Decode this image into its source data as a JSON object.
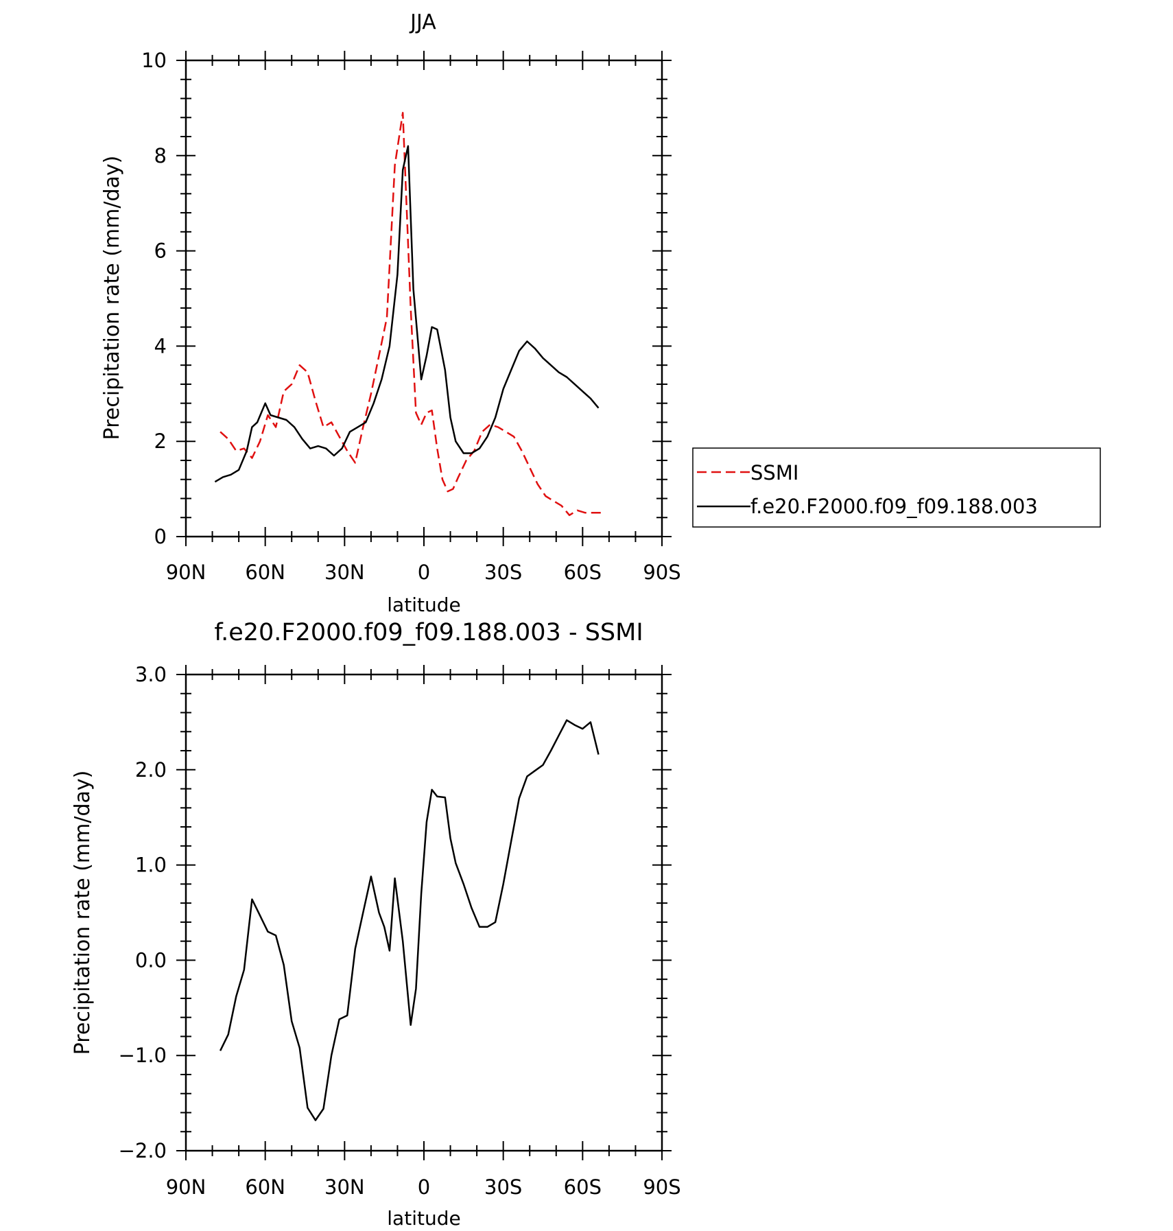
{
  "chart_data": [
    {
      "type": "line",
      "title": "JJA",
      "xlabel": "latitude",
      "ylabel": "Precipitation rate (mm/day)",
      "xlim": [
        90,
        -90
      ],
      "ylim": [
        0,
        10
      ],
      "grid": false,
      "legend_position": "right of plot, outside frame",
      "x_ticks": [
        {
          "value": 90,
          "label": "90N"
        },
        {
          "value": 60,
          "label": "60N"
        },
        {
          "value": 30,
          "label": "30N"
        },
        {
          "value": 0,
          "label": "0"
        },
        {
          "value": -30,
          "label": "30S"
        },
        {
          "value": -60,
          "label": "60S"
        },
        {
          "value": -90,
          "label": "90S"
        }
      ],
      "y_ticks": [
        {
          "value": 0,
          "label": "0"
        },
        {
          "value": 2,
          "label": "2"
        },
        {
          "value": 4,
          "label": "4"
        },
        {
          "value": 6,
          "label": "6"
        },
        {
          "value": 8,
          "label": "8"
        },
        {
          "value": 10,
          "label": "10"
        }
      ],
      "series": [
        {
          "name": "SSMI",
          "color": "#e01010",
          "dash": true,
          "x": [
            77,
            74,
            71,
            68,
            65,
            62,
            59,
            56,
            53,
            50,
            47,
            44,
            41,
            38,
            35,
            32,
            29,
            26,
            23,
            20,
            17,
            14,
            11,
            8,
            5,
            3,
            1,
            -1,
            -3,
            -5,
            -7,
            -9,
            -11,
            -13,
            -16,
            -19,
            -22,
            -25,
            -28,
            -31,
            -34,
            -37,
            -40,
            -43,
            -46,
            -49,
            -52,
            -55,
            -58,
            -61,
            -64,
            -67
          ],
          "y": [
            2.2,
            2.05,
            1.8,
            1.85,
            1.65,
            2.0,
            2.55,
            2.3,
            3.05,
            3.2,
            3.6,
            3.45,
            2.85,
            2.3,
            2.4,
            2.1,
            1.8,
            1.55,
            2.3,
            3.0,
            3.8,
            4.6,
            7.8,
            8.9,
            4.8,
            2.6,
            2.35,
            2.6,
            2.65,
            1.85,
            1.2,
            0.95,
            1.0,
            1.25,
            1.6,
            1.8,
            2.2,
            2.35,
            2.3,
            2.2,
            2.1,
            1.8,
            1.45,
            1.1,
            0.85,
            0.75,
            0.65,
            0.45,
            0.55,
            0.5,
            0.5,
            0.5
          ]
        },
        {
          "name": "f.e20.F2000.f09_f09.188.003",
          "color": "#000000",
          "dash": false,
          "x": [
            79,
            76,
            73,
            70,
            67,
            65,
            63,
            60,
            58,
            55,
            52,
            49,
            46,
            43,
            40,
            37,
            34,
            31,
            28,
            25,
            22,
            19,
            16,
            13,
            10,
            8,
            6,
            4,
            1,
            -1,
            -3,
            -5,
            -8,
            -10,
            -12,
            -15,
            -18,
            -21,
            -24,
            -27,
            -30,
            -33,
            -36,
            -39,
            -42,
            -45,
            -48,
            -51,
            -54,
            -57,
            -60,
            -63,
            -66
          ],
          "y": [
            1.15,
            1.25,
            1.3,
            1.4,
            1.8,
            2.3,
            2.4,
            2.8,
            2.55,
            2.5,
            2.45,
            2.3,
            2.05,
            1.85,
            1.9,
            1.85,
            1.7,
            1.85,
            2.2,
            2.3,
            2.4,
            2.8,
            3.3,
            4.0,
            5.5,
            7.7,
            8.2,
            5.2,
            3.3,
            3.8,
            4.4,
            4.35,
            3.5,
            2.5,
            2.0,
            1.75,
            1.75,
            1.85,
            2.1,
            2.5,
            3.1,
            3.5,
            3.9,
            4.1,
            3.95,
            3.75,
            3.6,
            3.45,
            3.35,
            3.2,
            3.05,
            2.9,
            2.7
          ]
        }
      ]
    },
    {
      "type": "line",
      "title": "f.e20.F2000.f09_f09.188.003 - SSMI",
      "xlabel": "latitude",
      "ylabel": "Precipitation rate (mm/day)",
      "xlim": [
        90,
        -90
      ],
      "ylim": [
        -2.0,
        3.0
      ],
      "grid": false,
      "x_ticks": [
        {
          "value": 90,
          "label": "90N"
        },
        {
          "value": 60,
          "label": "60N"
        },
        {
          "value": 30,
          "label": "30N"
        },
        {
          "value": 0,
          "label": "0"
        },
        {
          "value": -30,
          "label": "30S"
        },
        {
          "value": -60,
          "label": "60S"
        },
        {
          "value": -90,
          "label": "90S"
        }
      ],
      "y_ticks": [
        {
          "value": -2.0,
          "label": "−2.0"
        },
        {
          "value": -1.0,
          "label": "−1.0"
        },
        {
          "value": 0.0,
          "label": "0.0"
        },
        {
          "value": 1.0,
          "label": "1.0"
        },
        {
          "value": 2.0,
          "label": "2.0"
        },
        {
          "value": 3.0,
          "label": "3.0"
        }
      ],
      "series": [
        {
          "color": "#000000",
          "dash": false,
          "x": [
            77,
            74,
            71,
            68,
            65,
            62,
            59,
            56,
            53,
            50,
            47,
            44,
            41,
            38,
            35,
            32,
            29,
            26,
            23,
            20,
            17,
            15,
            13,
            11,
            8,
            5,
            3,
            1,
            -1,
            -3,
            -5,
            -8,
            -10,
            -12,
            -15,
            -18,
            -21,
            -24,
            -27,
            -30,
            -33,
            -36,
            -39,
            -42,
            -45,
            -48,
            -51,
            -54,
            -57,
            -60,
            -63,
            -66
          ],
          "y": [
            -0.95,
            -0.78,
            -0.38,
            -0.1,
            0.64,
            0.47,
            0.3,
            0.26,
            -0.05,
            -0.64,
            -0.92,
            -1.55,
            -1.68,
            -1.56,
            -1.0,
            -0.62,
            -0.58,
            0.12,
            0.5,
            0.88,
            0.5,
            0.35,
            0.1,
            0.86,
            0.2,
            -0.68,
            -0.3,
            0.7,
            1.45,
            1.79,
            1.72,
            1.71,
            1.28,
            1.02,
            0.8,
            0.55,
            0.35,
            0.35,
            0.4,
            0.8,
            1.25,
            1.7,
            1.93,
            1.99,
            2.05,
            2.2,
            2.36,
            2.52,
            2.47,
            2.43,
            2.5,
            2.16
          ]
        }
      ]
    }
  ]
}
